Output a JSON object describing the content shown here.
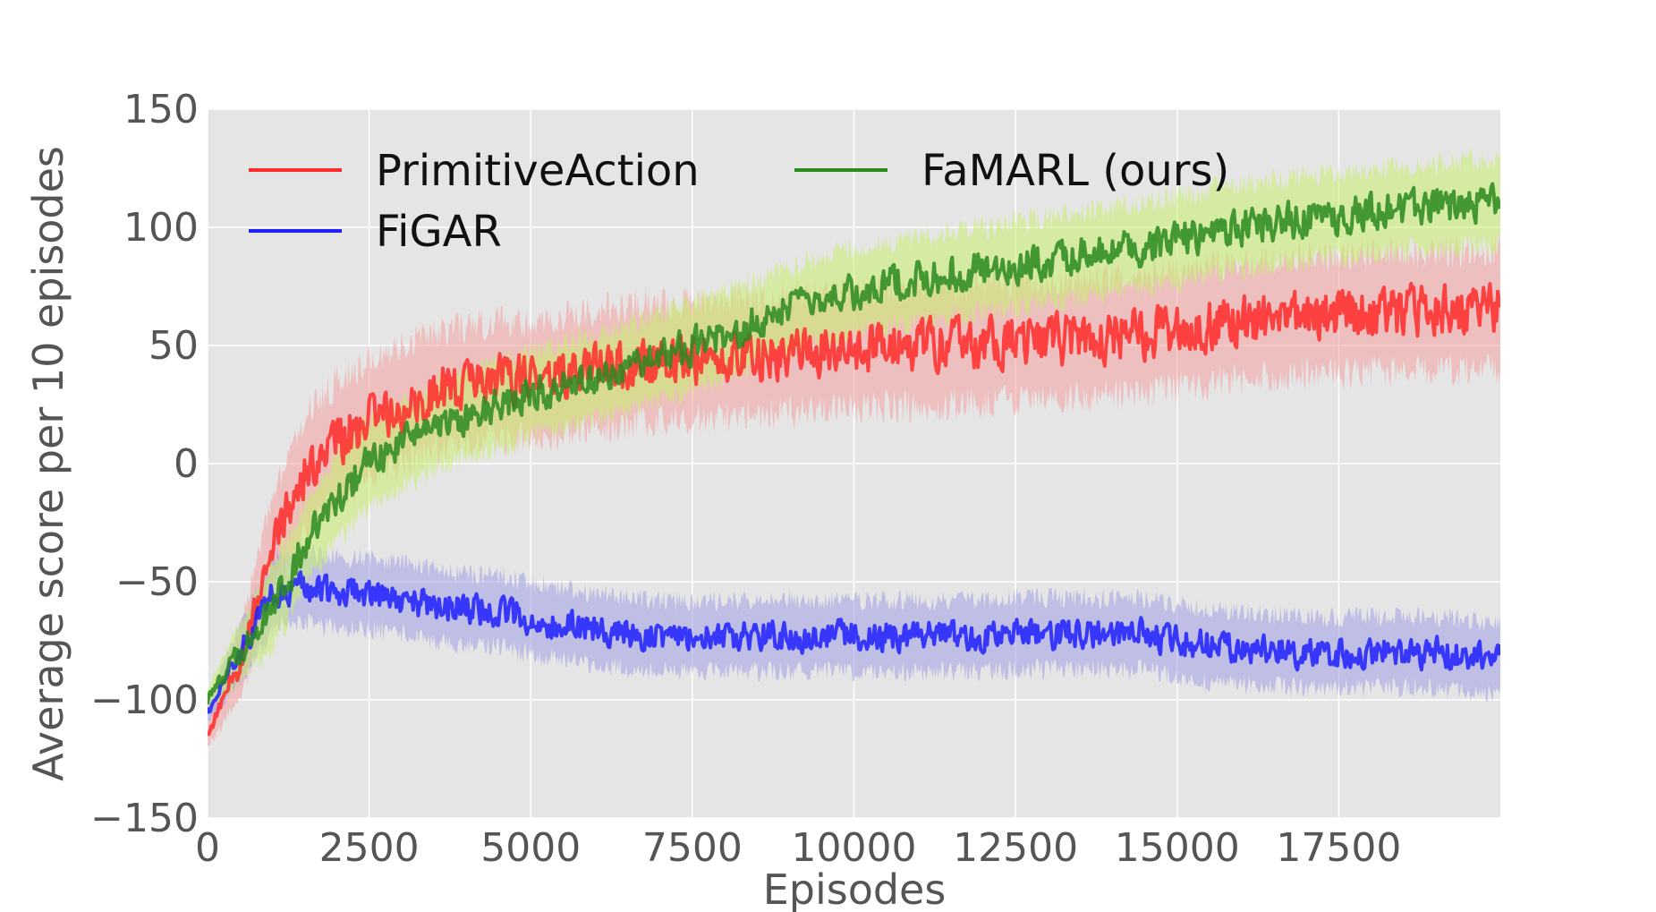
{
  "chart_data": {
    "type": "line",
    "title": "",
    "xlabel": "Episodes",
    "ylabel": "Average score per 10 episodes",
    "xlim": [
      0,
      20000
    ],
    "ylim": [
      -150,
      150
    ],
    "xticks": [
      0,
      2500,
      5000,
      7500,
      10000,
      12500,
      15000,
      17500
    ],
    "xtick_labels": [
      "0",
      "2500",
      "5000",
      "7500",
      "10000",
      "12500",
      "15000",
      "17500"
    ],
    "yticks": [
      -150,
      -100,
      -50,
      0,
      50,
      100,
      150
    ],
    "ytick_labels": [
      "−150",
      "−100",
      "−50",
      "0",
      "50",
      "100",
      "150"
    ],
    "grid": true,
    "background": "#e5e5e5",
    "legend_position": "top-left",
    "legend_columns": 2,
    "x": [
      0,
      500,
      1000,
      1500,
      2000,
      2500,
      3000,
      3500,
      4000,
      4500,
      5000,
      5500,
      6000,
      6500,
      7000,
      7500,
      8000,
      8500,
      9000,
      9500,
      10000,
      10500,
      11000,
      11500,
      12000,
      12500,
      13000,
      13500,
      14000,
      14500,
      15000,
      15500,
      16000,
      16500,
      17000,
      17500,
      18000,
      18500,
      19000,
      19500,
      20000
    ],
    "series": [
      {
        "name": "PrimitiveAction",
        "color": "#ff2a2a",
        "band_color": "#f4a0a0",
        "values": [
          -115,
          -85,
          -35,
          -5,
          10,
          18,
          25,
          30,
          33,
          35,
          35,
          37,
          40,
          42,
          43,
          44,
          45,
          46,
          47,
          48,
          48,
          49,
          50,
          50,
          51,
          52,
          52,
          53,
          54,
          55,
          57,
          59,
          61,
          62,
          63,
          63,
          64,
          64,
          65,
          65,
          65
        ],
        "band": [
          5,
          15,
          20,
          25,
          25,
          25,
          25,
          25,
          25,
          25,
          25,
          25,
          25,
          25,
          25,
          25,
          25,
          25,
          25,
          25,
          25,
          25,
          25,
          25,
          25,
          25,
          25,
          25,
          25,
          25,
          25,
          25,
          25,
          25,
          25,
          25,
          25,
          25,
          25,
          25,
          25
        ]
      },
      {
        "name": "FiGAR",
        "color": "#1f1fff",
        "band_color": "#a0a0e6",
        "values": [
          -105,
          -80,
          -55,
          -52,
          -55,
          -55,
          -57,
          -60,
          -62,
          -62,
          -66,
          -68,
          -70,
          -72,
          -73,
          -73,
          -73,
          -73,
          -73,
          -73,
          -73,
          -73,
          -73,
          -73,
          -73,
          -72,
          -72,
          -72,
          -72,
          -72,
          -75,
          -77,
          -78,
          -79,
          -80,
          -80,
          -80,
          -80,
          -80,
          -81,
          -82
        ],
        "band": [
          5,
          12,
          15,
          15,
          15,
          15,
          15,
          15,
          15,
          15,
          15,
          15,
          15,
          15,
          15,
          15,
          15,
          15,
          15,
          15,
          15,
          15,
          15,
          15,
          15,
          15,
          15,
          15,
          15,
          15,
          15,
          15,
          15,
          15,
          15,
          15,
          15,
          15,
          15,
          15,
          15
        ]
      },
      {
        "name": "FaMARL (ours)",
        "color": "#2a8a1e",
        "band_color": "#c8f06e",
        "values": [
          -100,
          -80,
          -60,
          -35,
          -15,
          0,
          8,
          15,
          20,
          25,
          30,
          33,
          37,
          41,
          45,
          50,
          55,
          60,
          65,
          70,
          73,
          76,
          78,
          80,
          82,
          84,
          86,
          88,
          90,
          92,
          95,
          98,
          100,
          102,
          104,
          105,
          107,
          108,
          109,
          110,
          110
        ],
        "band": [
          5,
          12,
          18,
          18,
          18,
          18,
          18,
          18,
          18,
          18,
          18,
          18,
          18,
          18,
          18,
          18,
          18,
          18,
          18,
          18,
          18,
          18,
          18,
          18,
          18,
          18,
          18,
          18,
          18,
          18,
          18,
          18,
          18,
          18,
          18,
          18,
          18,
          18,
          18,
          18,
          18
        ]
      }
    ]
  }
}
